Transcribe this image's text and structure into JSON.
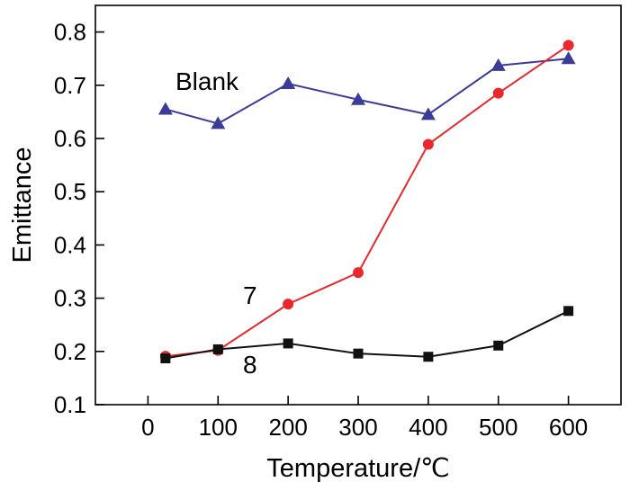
{
  "chart_data": {
    "type": "line",
    "xlabel": "Temperature/℃",
    "ylabel": "Emittance",
    "xlim": [
      -75,
      675
    ],
    "ylim": [
      0.1,
      0.85
    ],
    "xticks": [
      "0",
      "100",
      "200",
      "300",
      "400",
      "500",
      "600"
    ],
    "yticks": [
      "0.1",
      "0.2",
      "0.3",
      "0.4",
      "0.5",
      "0.6",
      "0.7",
      "0.8"
    ],
    "grid": false,
    "legend": "none",
    "series": [
      {
        "name": "Blank",
        "marker": "triangle",
        "color": "#3b3b9a",
        "x": [
          25,
          100,
          200,
          300,
          400,
          500,
          600
        ],
        "values": [
          0.655,
          0.628,
          0.703,
          0.673,
          0.645,
          0.737,
          0.75
        ]
      },
      {
        "name": "7",
        "marker": "circle",
        "color": "#e8282b",
        "x": [
          25,
          100,
          200,
          300,
          400,
          500,
          600
        ],
        "values": [
          0.191,
          0.202,
          0.289,
          0.348,
          0.589,
          0.685,
          0.775
        ]
      },
      {
        "name": "8",
        "marker": "square",
        "color": "#111111",
        "x": [
          25,
          100,
          200,
          300,
          400,
          500,
          600
        ],
        "values": [
          0.187,
          0.204,
          0.215,
          0.196,
          0.19,
          0.211,
          0.276
        ]
      }
    ]
  }
}
